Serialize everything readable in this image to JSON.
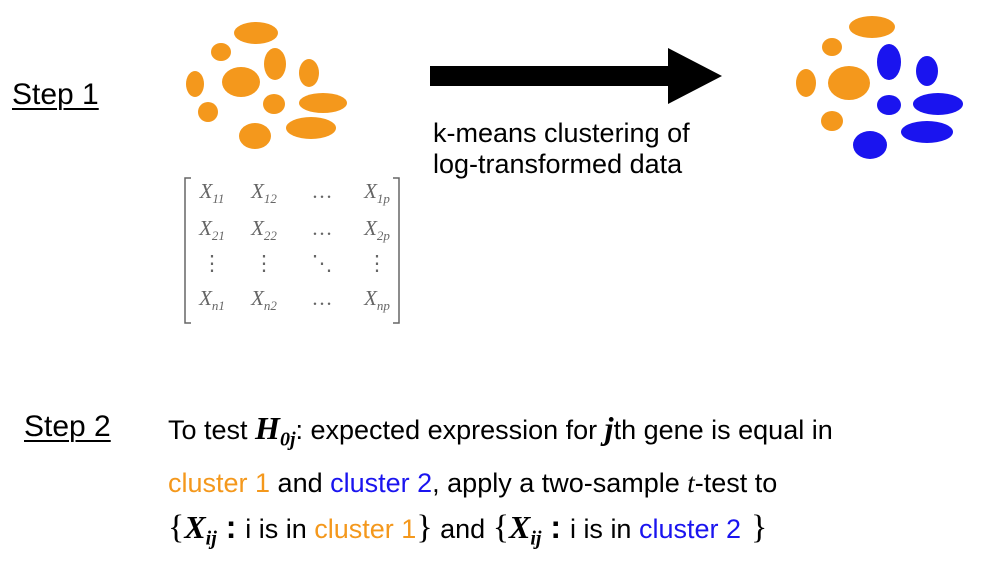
{
  "colors": {
    "cluster1": "#f4981c",
    "cluster2": "#1a14ef",
    "arrow": "#000000",
    "matrix": "#666666"
  },
  "step1": {
    "label": "Step 1",
    "arrow_caption_line1": "k-means clustering of",
    "arrow_caption_line2": "log-transformed data",
    "matrix": {
      "rows": [
        [
          {
            "base": "X",
            "sub": "11"
          },
          {
            "base": "X",
            "sub": "12"
          },
          {
            "base": "…",
            "sub": ""
          },
          {
            "base": "X",
            "sub": "1p"
          }
        ],
        [
          {
            "base": "X",
            "sub": "21"
          },
          {
            "base": "X",
            "sub": "22"
          },
          {
            "base": "…",
            "sub": ""
          },
          {
            "base": "X",
            "sub": "2p"
          }
        ],
        [
          {
            "base": "⋮",
            "sub": ""
          },
          {
            "base": "⋮",
            "sub": ""
          },
          {
            "base": "⋱",
            "sub": ""
          },
          {
            "base": "⋮",
            "sub": ""
          }
        ],
        [
          {
            "base": "X",
            "sub": "n1"
          },
          {
            "base": "X",
            "sub": "n2"
          },
          {
            "base": "…",
            "sub": ""
          },
          {
            "base": "X",
            "sub": "np"
          }
        ]
      ]
    }
  },
  "step2": {
    "label": "Step 2",
    "line1": {
      "pre": "To test ",
      "H": "H",
      "H_sub": "0j",
      "mid": ": expected expression for ",
      "j": "j",
      "post": "th gene is equal in"
    },
    "line2": {
      "cluster1": "cluster 1",
      "and": " and ",
      "cluster2": "cluster 2",
      "pre_t": ", apply a two-sample ",
      "t": "t",
      "post_t": "-test to"
    },
    "line3": {
      "open": "{",
      "X": "X",
      "X_sub": "ij",
      "colon": " : ",
      "is_in": "i is in ",
      "cluster1": "cluster 1",
      "close": "}",
      "and": " and ",
      "cluster2": "cluster 2"
    }
  }
}
